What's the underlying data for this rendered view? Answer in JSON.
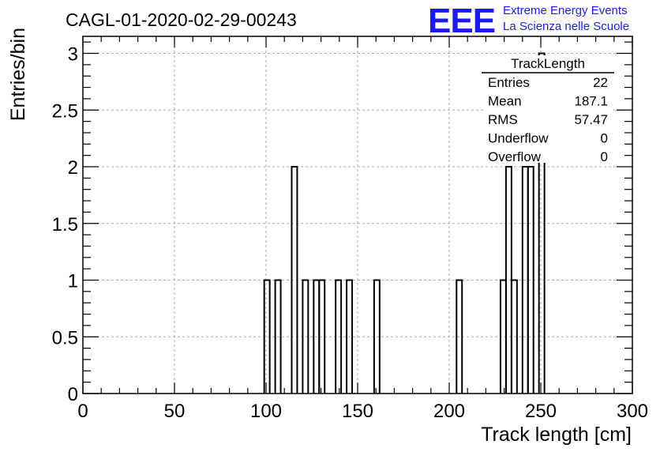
{
  "header": {
    "run_title": "CAGL-01-2020-02-29-00243",
    "logo_text": "EEE",
    "logo_line1": "Extreme Energy Events",
    "logo_line2": "La Scienza nelle Scuole"
  },
  "stats_box": {
    "title": "TrackLength",
    "rows": [
      {
        "label": "Entries",
        "value": "22"
      },
      {
        "label": "Mean",
        "value": "187.1"
      },
      {
        "label": "RMS",
        "value": "57.47"
      },
      {
        "label": "Underflow",
        "value": "0"
      },
      {
        "label": "Overflow",
        "value": "0"
      }
    ]
  },
  "colors": {
    "logo_blue": "#1a1aff",
    "line": "#000000",
    "grid": "#aaaaaa"
  },
  "chart_data": {
    "type": "histogram",
    "xlabel": "Track length [cm]",
    "ylabel": "Entries/bin",
    "xlim": [
      0,
      300
    ],
    "ylim": [
      0,
      3.15
    ],
    "grid": true,
    "x_ticks": [
      0,
      50,
      100,
      150,
      200,
      250,
      300
    ],
    "y_ticks": [
      0,
      0.5,
      1,
      1.5,
      2,
      2.5,
      3
    ],
    "x_tick_labels": [
      "0",
      "50",
      "100",
      "150",
      "200",
      "250",
      "300"
    ],
    "y_tick_labels": [
      "0",
      "0.5",
      "1",
      "1.5",
      "2",
      "2.5",
      "3"
    ],
    "bin_width": 3,
    "bins": [
      {
        "x0": 99,
        "x1": 102,
        "count": 1
      },
      {
        "x0": 105,
        "x1": 108,
        "count": 1
      },
      {
        "x0": 114,
        "x1": 117,
        "count": 2
      },
      {
        "x0": 120,
        "x1": 123,
        "count": 1
      },
      {
        "x0": 126,
        "x1": 129,
        "count": 1
      },
      {
        "x0": 129,
        "x1": 132,
        "count": 1
      },
      {
        "x0": 138,
        "x1": 141,
        "count": 1
      },
      {
        "x0": 144,
        "x1": 147,
        "count": 1
      },
      {
        "x0": 159,
        "x1": 162,
        "count": 1
      },
      {
        "x0": 204,
        "x1": 207,
        "count": 1
      },
      {
        "x0": 228,
        "x1": 231,
        "count": 1
      },
      {
        "x0": 231,
        "x1": 234,
        "count": 2
      },
      {
        "x0": 234,
        "x1": 237,
        "count": 1
      },
      {
        "x0": 240,
        "x1": 243,
        "count": 2
      },
      {
        "x0": 243,
        "x1": 246,
        "count": 2
      },
      {
        "x0": 249,
        "x1": 252,
        "count": 3
      }
    ]
  }
}
